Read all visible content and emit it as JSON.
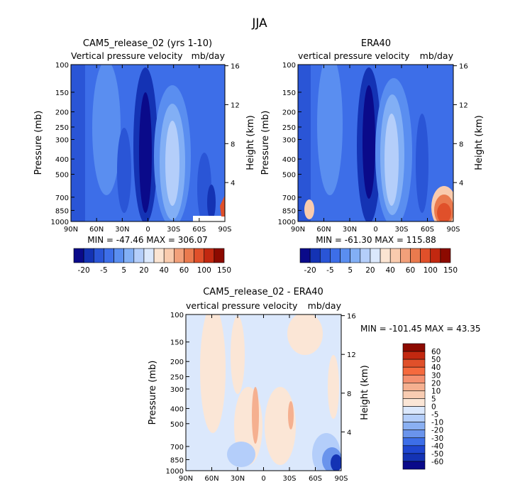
{
  "figure_title": "JJA",
  "chart_data": [
    {
      "type": "heatmap",
      "title": "CAM5_release_02 (yrs 1-10)",
      "subtitle_left": "Vertical pressure velocity",
      "subtitle_right": "mb/day",
      "ylabel": "Pressure (mb)",
      "ylabel_right": "Height (km)",
      "xticks": [
        "90N",
        "60N",
        "30N",
        "0",
        "30S",
        "60S",
        "90S"
      ],
      "yticks": [
        "100",
        "150",
        "200",
        "250",
        "300",
        "400",
        "500",
        "700",
        "850",
        "1000"
      ],
      "yticks_right": [
        "16",
        "12",
        "8",
        "4"
      ],
      "stats": "MIN = -47.46   MAX = 306.07",
      "colorbar_labels": [
        "-20",
        "-5",
        "5",
        "20",
        "40",
        "60",
        "100",
        "150"
      ],
      "colorbar_colors": [
        "#0a0a8a",
        "#1433b4",
        "#2a55d6",
        "#3d6ee8",
        "#5a8ef0",
        "#82aff5",
        "#b4cefa",
        "#dbe8fc",
        "#fbe4d2",
        "#f9cbae",
        "#f2a07a",
        "#ea7a4e",
        "#e0502a",
        "#c22810",
        "#8c0a00"
      ]
    },
    {
      "type": "heatmap",
      "title": "ERA40",
      "subtitle_left": "vertical pressure velocity",
      "subtitle_right": "mb/day",
      "ylabel": "Pressure (mb)",
      "ylabel_right": "Height (km)",
      "xticks": [
        "90N",
        "60N",
        "30N",
        "0",
        "30S",
        "60S",
        "90S"
      ],
      "yticks": [
        "100",
        "150",
        "200",
        "250",
        "300",
        "400",
        "500",
        "700",
        "850",
        "1000"
      ],
      "yticks_right": [
        "16",
        "12",
        "8",
        "4"
      ],
      "stats": "MIN = -61.30   MAX = 115.88",
      "colorbar_labels": [
        "-20",
        "-5",
        "5",
        "20",
        "40",
        "60",
        "100",
        "150"
      ],
      "colorbar_colors": [
        "#0a0a8a",
        "#1433b4",
        "#2a55d6",
        "#3d6ee8",
        "#5a8ef0",
        "#82aff5",
        "#b4cefa",
        "#dbe8fc",
        "#fbe4d2",
        "#f9cbae",
        "#f2a07a",
        "#ea7a4e",
        "#e0502a",
        "#c22810",
        "#8c0a00"
      ]
    },
    {
      "type": "heatmap",
      "title": "CAM5_release_02 - ERA40",
      "subtitle_left": "vertical pressure velocity",
      "subtitle_right": "mb/day",
      "ylabel": "Pressure (mb)",
      "ylabel_right": "Height (km)",
      "xticks": [
        "90N",
        "60N",
        "30N",
        "0",
        "30S",
        "60S",
        "90S"
      ],
      "yticks": [
        "100",
        "150",
        "200",
        "250",
        "300",
        "400",
        "500",
        "700",
        "850",
        "1000"
      ],
      "yticks_right": [
        "16",
        "12",
        "8",
        "4"
      ],
      "stats": "MIN = -101.45   MAX =  43.35",
      "colorbar_labels": [
        "60",
        "50",
        "40",
        "30",
        "20",
        "10",
        "5",
        "0",
        "-5",
        "-10",
        "-20",
        "-30",
        "-40",
        "-50",
        "-60"
      ],
      "colorbar_colors": [
        "#8c0a00",
        "#c22810",
        "#e0502a",
        "#f56a3e",
        "#f49070",
        "#f5b090",
        "#f8ccb2",
        "#fbe6d6",
        "#dbe8fc",
        "#b4cefa",
        "#8ab0f2",
        "#6a94ec",
        "#3d6ee8",
        "#1f46d0",
        "#1433b4",
        "#0a0a8a"
      ]
    }
  ]
}
